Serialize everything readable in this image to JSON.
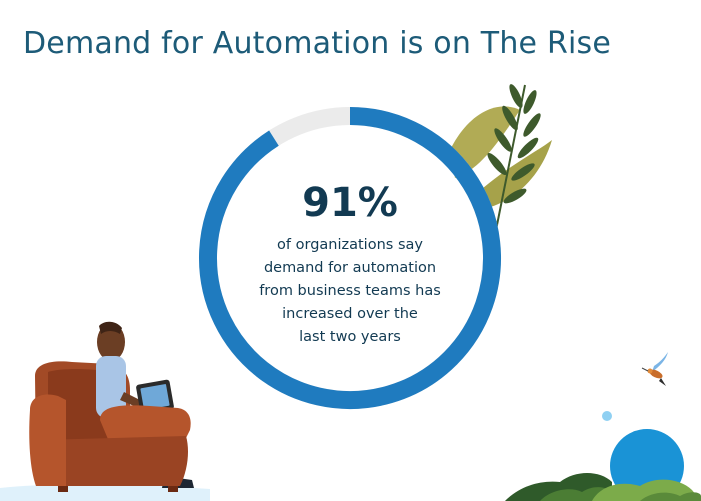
{
  "title": "Demand for Automation is on The Rise",
  "chart_data": {
    "type": "pie",
    "values": [
      91,
      9
    ],
    "headline": "91%",
    "caption_lines": [
      "of organizations say",
      "demand for automation",
      "from business teams has",
      "increased over the",
      "last two years"
    ]
  },
  "colors": {
    "ring_fill": "#1f7bbf",
    "ring_track": "#ebebeb",
    "title": "#1d5b78",
    "text": "#123a52",
    "leaf_light": "#a6a24a",
    "leaf_dark": "#3e5a2c",
    "chair": "#a24a26",
    "sun": "#1a93d6",
    "bush": "#5a8a3a"
  }
}
